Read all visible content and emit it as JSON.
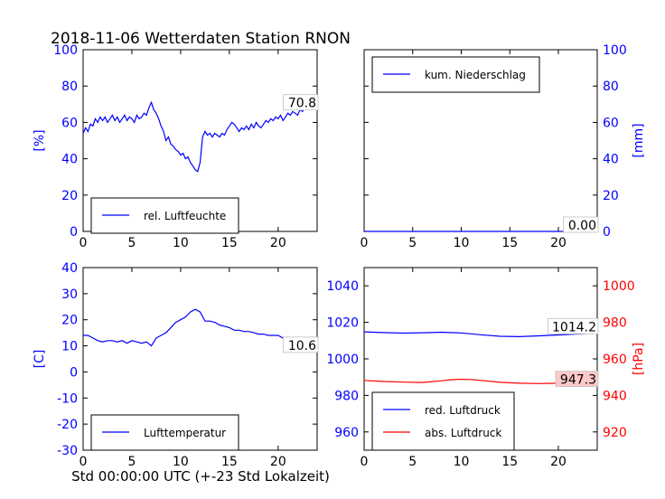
{
  "figure": {
    "title": "2018-11-06 Wetterdaten Station RNON",
    "xlabel": "Std 00:00:00 UTC (+-23 Std Lokalzeit)"
  },
  "chart_data": [
    {
      "id": "humidity",
      "type": "line",
      "title": "",
      "ylabel": "[%]",
      "xlim": [
        0,
        24
      ],
      "ylim": [
        0,
        100
      ],
      "xticks": [
        0,
        5,
        10,
        15,
        20
      ],
      "yticks": [
        0,
        20,
        40,
        60,
        80,
        100
      ],
      "legend_loc": "lower left",
      "annotation": "70.8",
      "series": [
        {
          "name": "rel. Luftfeuchte",
          "color": "#0000ff",
          "x": [
            0,
            0.25,
            0.5,
            0.75,
            1,
            1.25,
            1.5,
            1.75,
            2,
            2.25,
            2.5,
            2.75,
            3,
            3.25,
            3.5,
            3.75,
            4,
            4.25,
            4.5,
            4.75,
            5,
            5.25,
            5.5,
            5.75,
            6,
            6.25,
            6.5,
            6.75,
            7,
            7.25,
            7.5,
            7.75,
            8,
            8.25,
            8.5,
            8.75,
            9,
            9.25,
            9.5,
            9.75,
            10,
            10.25,
            10.5,
            10.75,
            11,
            11.25,
            11.5,
            11.75,
            12,
            12.25,
            12.5,
            12.75,
            13,
            13.25,
            13.5,
            13.75,
            14,
            14.25,
            14.5,
            14.75,
            15,
            15.25,
            15.5,
            15.75,
            16,
            16.25,
            16.5,
            16.75,
            17,
            17.25,
            17.5,
            17.75,
            18,
            18.25,
            18.5,
            18.75,
            19,
            19.25,
            19.5,
            19.75,
            20,
            20.25,
            20.5,
            20.75,
            21,
            21.25,
            21.5,
            21.75,
            22,
            22.25,
            22.5,
            22.75,
            23,
            23.25,
            23.5,
            23.75,
            24
          ],
          "y": [
            54,
            57,
            55,
            59,
            58,
            62,
            60,
            63,
            61,
            63,
            60,
            62,
            64,
            61,
            63,
            60,
            62,
            64,
            61,
            63,
            62,
            60,
            64,
            62,
            63,
            65,
            64,
            68,
            71,
            67,
            65,
            62,
            58,
            55,
            50,
            52,
            48,
            47,
            45,
            44,
            42,
            43,
            40,
            41,
            38,
            36,
            34,
            33,
            38,
            52,
            55,
            53,
            54,
            52,
            54,
            53,
            52,
            54,
            53,
            56,
            58,
            60,
            59,
            57,
            55,
            57,
            56,
            58,
            56,
            59,
            57,
            60,
            58,
            57,
            59,
            61,
            60,
            62,
            61,
            63,
            62,
            64,
            61,
            63,
            65,
            64,
            66,
            65,
            64,
            67,
            66,
            68,
            67,
            69,
            70,
            69,
            71
          ]
        }
      ]
    },
    {
      "id": "precipitation",
      "type": "line",
      "title": "",
      "ylabel": "[mm]",
      "xlim": [
        0,
        24
      ],
      "ylim": [
        0,
        100
      ],
      "xticks": [
        0,
        5,
        10,
        15,
        20
      ],
      "yticks": [
        0,
        20,
        40,
        60,
        80,
        100
      ],
      "y_axis_side": "right",
      "legend_loc": "upper left",
      "annotation": "0.00",
      "series": [
        {
          "name": "kum. Niederschlag",
          "color": "#0000ff",
          "x": [
            0,
            24
          ],
          "y": [
            0,
            0
          ]
        }
      ]
    },
    {
      "id": "temperature",
      "type": "line",
      "title": "",
      "ylabel": "[C]",
      "xlim": [
        0,
        24
      ],
      "ylim": [
        -30,
        40
      ],
      "xticks": [
        0,
        5,
        10,
        15,
        20
      ],
      "yticks": [
        -30,
        -20,
        -10,
        0,
        10,
        20,
        30,
        40
      ],
      "legend_loc": "lower left",
      "annotation": "10.6",
      "series": [
        {
          "name": "Lufttemperatur",
          "color": "#0000ff",
          "x": [
            0,
            0.5,
            1,
            1.5,
            2,
            2.5,
            3,
            3.5,
            4,
            4.5,
            5,
            5.5,
            6,
            6.5,
            7,
            7.5,
            8,
            8.5,
            9,
            9.5,
            10,
            10.5,
            11,
            11.5,
            12,
            12.5,
            13,
            13.5,
            14,
            14.5,
            15,
            15.5,
            16,
            16.5,
            17,
            17.5,
            18,
            18.5,
            19,
            19.5,
            20,
            20.5,
            21,
            21.5,
            22,
            22.5,
            23,
            23.5,
            24
          ],
          "y": [
            14,
            14,
            13,
            12,
            11.5,
            12,
            12,
            11.5,
            12,
            11,
            12,
            11.5,
            11,
            11.5,
            10,
            13,
            14,
            15,
            17,
            19,
            20,
            21,
            23,
            24,
            23,
            19.5,
            19.5,
            19,
            18,
            17.5,
            17,
            16,
            16,
            15.5,
            15.5,
            15,
            14.5,
            14.5,
            14,
            14,
            14,
            13,
            12.5,
            12,
            12,
            11.5,
            11,
            10.8,
            10.6
          ]
        }
      ]
    },
    {
      "id": "pressure",
      "type": "line",
      "title": "",
      "ylabel": "[hPa]",
      "xlim": [
        0,
        24
      ],
      "ylim_left": [
        950,
        1050
      ],
      "ylim_right": [
        910,
        1010
      ],
      "xticks": [
        0,
        5,
        10,
        15,
        20
      ],
      "yticks_left": [
        960,
        980,
        1000,
        1020,
        1040
      ],
      "yticks_right": [
        920,
        940,
        960,
        980,
        1000
      ],
      "legend_loc": "lower left",
      "annotation_left": "1014.2",
      "annotation_right": "947.3",
      "series": [
        {
          "name": "red. Luftdruck",
          "color": "#0000ff",
          "axis": "left",
          "x": [
            0,
            2,
            4,
            6,
            8,
            10,
            12,
            14,
            16,
            18,
            20,
            22,
            24
          ],
          "y": [
            1014.8,
            1014.4,
            1014.1,
            1014.3,
            1014.6,
            1014.2,
            1013.2,
            1012.4,
            1012.2,
            1012.6,
            1013.1,
            1013.6,
            1014.2
          ]
        },
        {
          "name": "abs. Luftdruck",
          "color": "#ff0000",
          "axis": "right",
          "x": [
            0,
            2,
            4,
            6,
            8,
            9,
            10,
            11,
            12,
            14,
            16,
            18,
            20,
            22,
            24
          ],
          "y": [
            948.2,
            947.6,
            947.3,
            947.1,
            948.0,
            948.6,
            948.8,
            948.7,
            948.2,
            947.2,
            946.7,
            946.5,
            946.7,
            947.0,
            947.3
          ]
        }
      ]
    }
  ]
}
